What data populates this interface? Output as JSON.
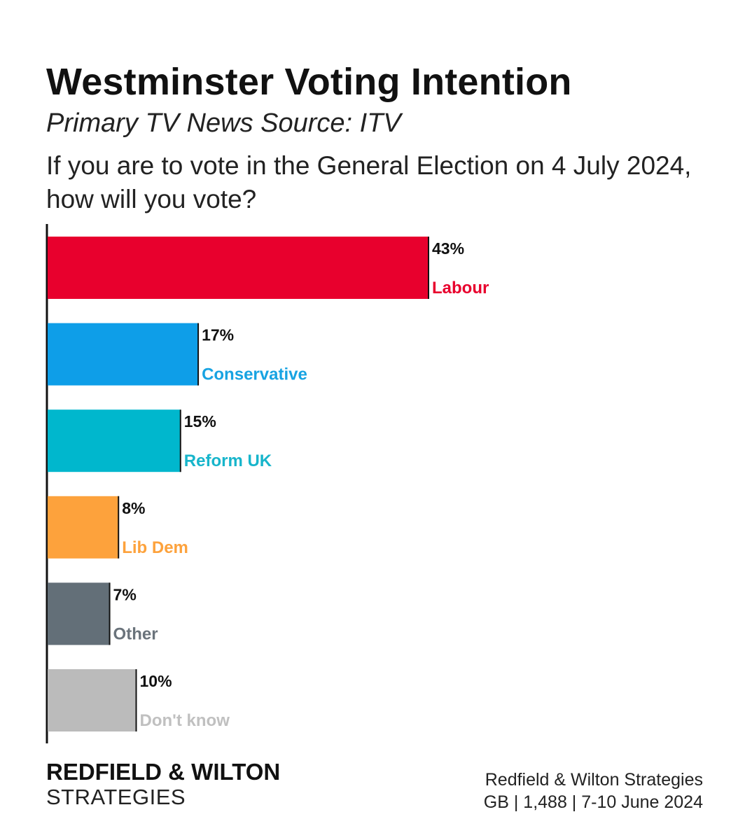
{
  "header": {
    "title": "Westminster Voting Intention",
    "subtitle": "Primary TV News Source: ITV",
    "question": "If you are to vote in the General Election on 4 July 2024, how will you vote?"
  },
  "chart_data": {
    "type": "bar",
    "orientation": "horizontal",
    "title": "Westminster Voting Intention",
    "subtitle": "Primary TV News Source: ITV",
    "categories": [
      "Labour",
      "Conservative",
      "Reform UK",
      "Lib Dem",
      "Other",
      "Don't know"
    ],
    "values": [
      43,
      17,
      15,
      8,
      7,
      10
    ],
    "value_labels": [
      "43%",
      "17%",
      "15%",
      "8%",
      "7%",
      "10%"
    ],
    "colors": [
      "#e8002d",
      "#0e9ee8",
      "#00b7cd",
      "#fda23c",
      "#636f78",
      "#bbbbbb"
    ],
    "label_colors": [
      "#e8002d",
      "#17a3e2",
      "#17b5cb",
      "#fda23c",
      "#6a737b",
      "#c0c0c0"
    ],
    "unit": "%",
    "xlim": [
      0,
      100
    ],
    "grid": false,
    "legend": "none"
  },
  "footer": {
    "brand_line1": "REDFIELD & WILTON",
    "brand_line2": "STRATEGIES",
    "source_line1": "Redfield & Wilton Strategies",
    "source_line2": "GB | 1,488 | 7-10 June 2024"
  }
}
